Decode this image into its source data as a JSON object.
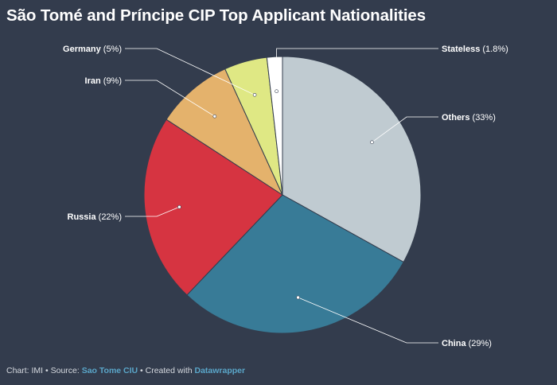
{
  "chart_data": {
    "type": "pie",
    "title": "São Tomé and Príncipe CIP Top Applicant Nationalities",
    "slices": [
      {
        "name": "Others",
        "pct_label": "(33%)",
        "value": 33,
        "color": "#c0cbd1"
      },
      {
        "name": "China",
        "pct_label": "(29%)",
        "value": 29,
        "color": "#387b97"
      },
      {
        "name": "Russia",
        "pct_label": "(22%)",
        "value": 22,
        "color": "#d63441"
      },
      {
        "name": "Iran",
        "pct_label": "(9%)",
        "value": 9,
        "color": "#e4b26c"
      },
      {
        "name": "Germany",
        "pct_label": "(5%)",
        "value": 5,
        "color": "#dfe884"
      },
      {
        "name": "Stateless",
        "pct_label": "(1.8%)",
        "value": 1.8,
        "color": "#ffffff"
      }
    ]
  },
  "footer": {
    "prefix": "Chart: IMI • Source: ",
    "source": "Sao Tome CIU",
    "middle": " • Created with ",
    "tool": "Datawrapper"
  }
}
